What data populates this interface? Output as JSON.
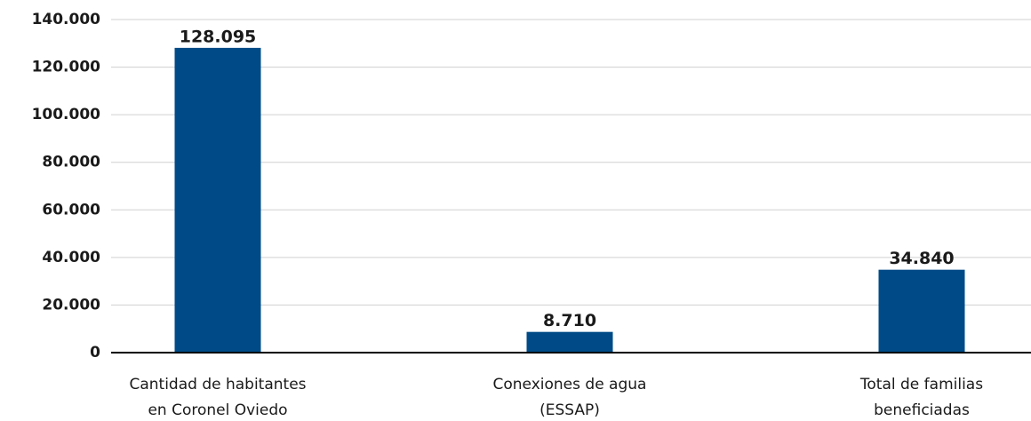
{
  "chart_data": {
    "type": "bar",
    "categories": [
      "Cantidad de habitantes\nen Coronel Oviedo",
      "Conexiones de agua\n(ESSAP)",
      "Total de familias\nbeneficiadas"
    ],
    "values": [
      128095,
      8710,
      34840
    ],
    "value_labels": [
      "128.095",
      "8.710",
      "34.840"
    ],
    "color": "#004b87",
    "ylim": [
      0,
      140000
    ],
    "yticks": [
      0,
      {
        "value": 20000,
        "label": "20.000"
      },
      {
        "value": 40000,
        "label": "40.000"
      },
      {
        "value": 60000,
        "label": "60.000"
      },
      {
        "value": 80000,
        "label": "80.000"
      },
      {
        "value": 100000,
        "label": "100.000"
      },
      {
        "value": 120000,
        "label": "120.000"
      },
      {
        "value": 140000,
        "label": "140.000"
      }
    ],
    "grid": true
  }
}
